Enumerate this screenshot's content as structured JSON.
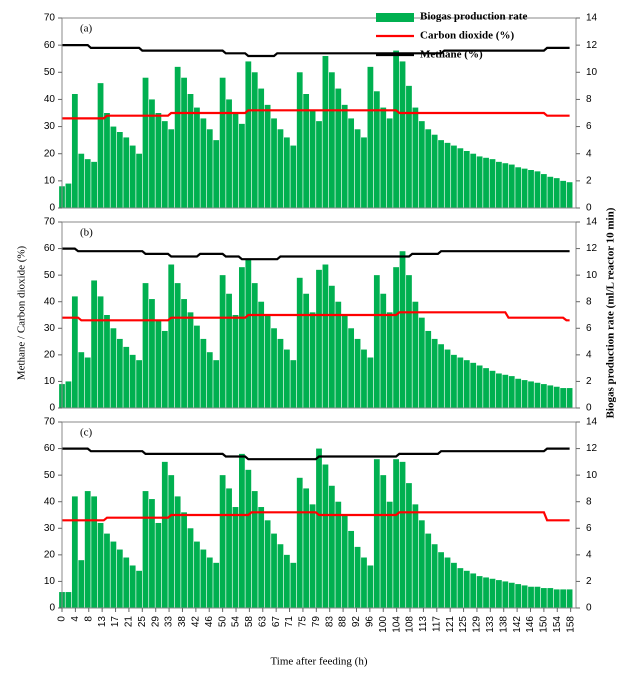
{
  "chart_data": [
    {
      "type": "bar_line",
      "panel_label": "(a)",
      "legend": "upper right",
      "xlim": [
        0,
        160
      ],
      "ylim": [
        0,
        70
      ],
      "yticks": [
        0,
        10,
        20,
        30,
        40,
        50,
        60,
        70
      ],
      "y2lim": [
        0,
        14
      ],
      "y2ticks": [
        0,
        2,
        4,
        6,
        8,
        10,
        12,
        14
      ],
      "x": [
        0,
        2,
        4,
        6,
        8,
        10,
        12,
        14,
        16,
        18,
        20,
        22,
        24,
        26,
        28,
        30,
        32,
        34,
        36,
        38,
        40,
        42,
        44,
        46,
        48,
        50,
        52,
        54,
        56,
        58,
        60,
        62,
        64,
        66,
        68,
        70,
        72,
        74,
        76,
        78,
        80,
        82,
        84,
        86,
        88,
        90,
        92,
        94,
        96,
        98,
        100,
        102,
        104,
        106,
        108,
        110,
        112,
        114,
        116,
        118,
        120,
        122,
        124,
        126,
        128,
        130,
        132,
        134,
        136,
        138,
        140,
        142,
        144,
        146,
        148,
        150,
        152,
        154,
        156,
        158
      ],
      "series": [
        {
          "name": "Biogas production rate",
          "color": "#00b050",
          "axis": "y2",
          "values": [
            1.6,
            1.8,
            8.4,
            4.0,
            3.6,
            3.4,
            9.2,
            7.0,
            6.0,
            5.6,
            5.2,
            4.6,
            4.0,
            9.6,
            8.0,
            7.0,
            6.4,
            5.8,
            10.4,
            9.6,
            8.4,
            7.4,
            6.6,
            5.8,
            5.0,
            9.6,
            8.0,
            7.0,
            6.2,
            10.8,
            10.0,
            8.8,
            7.6,
            6.6,
            5.8,
            5.2,
            4.6,
            10.0,
            8.4,
            7.2,
            6.4,
            11.2,
            10.0,
            8.8,
            7.6,
            6.6,
            5.8,
            5.2,
            10.4,
            8.6,
            7.4,
            6.6,
            11.6,
            10.8,
            9.0,
            7.4,
            6.4,
            5.8,
            5.4,
            5.0,
            4.8,
            4.6,
            4.4,
            4.2,
            4.0,
            3.8,
            3.7,
            3.6,
            3.4,
            3.3,
            3.2,
            3.0,
            2.9,
            2.8,
            2.7,
            2.5,
            2.3,
            2.2,
            2.0,
            1.9
          ]
        },
        {
          "name": "Carbon dioxide (%)",
          "color": "#ff0000",
          "x": [
            0,
            13,
            14,
            33,
            34,
            57,
            58,
            104,
            105,
            150,
            151,
            158
          ],
          "values": [
            33,
            33,
            34,
            34,
            35,
            35,
            36,
            36,
            35,
            35,
            34,
            34
          ]
        },
        {
          "name": "Methane (%)",
          "color": "#000000",
          "x": [
            0,
            8,
            9,
            24,
            25,
            50,
            51,
            57,
            58,
            66,
            67,
            118,
            119,
            150,
            151,
            158
          ],
          "values": [
            60,
            60,
            59,
            59,
            58,
            58,
            57,
            57,
            56,
            56,
            57,
            57,
            58,
            58,
            59,
            59
          ]
        }
      ]
    },
    {
      "type": "bar_line",
      "panel_label": "(b)",
      "y_label": "Methane / Carbon dioxide (%)",
      "y2_label": "Biogas production rate (ml/L reactor 10 min)",
      "xlim": [
        0,
        160
      ],
      "ylim": [
        0,
        70
      ],
      "yticks": [
        0,
        10,
        20,
        30,
        40,
        50,
        60,
        70
      ],
      "y2lim": [
        0,
        14
      ],
      "y2ticks": [
        0,
        2,
        4,
        6,
        8,
        10,
        12,
        14
      ],
      "x": [
        0,
        2,
        4,
        6,
        8,
        10,
        12,
        14,
        16,
        18,
        20,
        22,
        24,
        26,
        28,
        30,
        32,
        34,
        36,
        38,
        40,
        42,
        44,
        46,
        48,
        50,
        52,
        54,
        56,
        58,
        60,
        62,
        64,
        66,
        68,
        70,
        72,
        74,
        76,
        78,
        80,
        82,
        84,
        86,
        88,
        90,
        92,
        94,
        96,
        98,
        100,
        102,
        104,
        106,
        108,
        110,
        112,
        114,
        116,
        118,
        120,
        122,
        124,
        126,
        128,
        130,
        132,
        134,
        136,
        138,
        140,
        142,
        144,
        146,
        148,
        150,
        152,
        154,
        156,
        158
      ],
      "series": [
        {
          "color": "#00b050",
          "axis": "y2",
          "values": [
            1.8,
            2.0,
            8.4,
            4.2,
            3.8,
            9.6,
            8.4,
            7.0,
            6.0,
            5.2,
            4.6,
            4.0,
            3.6,
            9.4,
            8.2,
            6.6,
            5.8,
            10.8,
            9.4,
            8.2,
            7.2,
            6.2,
            5.2,
            4.2,
            3.6,
            10.0,
            8.6,
            7.0,
            10.6,
            11.2,
            9.4,
            8.0,
            7.0,
            6.0,
            5.2,
            4.4,
            3.6,
            9.8,
            8.6,
            7.2,
            10.4,
            10.8,
            9.2,
            8.0,
            7.0,
            6.0,
            5.2,
            4.4,
            3.8,
            10.0,
            8.6,
            7.2,
            10.6,
            11.8,
            10.0,
            8.0,
            6.8,
            5.8,
            5.2,
            4.8,
            4.4,
            4.0,
            3.8,
            3.6,
            3.4,
            3.2,
            3.0,
            2.8,
            2.6,
            2.5,
            2.4,
            2.2,
            2.1,
            2.0,
            1.9,
            1.8,
            1.7,
            1.6,
            1.5,
            1.5
          ]
        },
        {
          "color": "#ff0000",
          "x": [
            0,
            5,
            6,
            33,
            34,
            57,
            58,
            104,
            105,
            138,
            139,
            156,
            157,
            158
          ],
          "values": [
            34,
            34,
            33,
            33,
            34,
            34,
            35,
            35,
            36,
            36,
            34,
            34,
            33,
            33
          ]
        },
        {
          "color": "#000000",
          "x": [
            0,
            4,
            5,
            25,
            26,
            33,
            34,
            42,
            43,
            50,
            51,
            55,
            56,
            67,
            68,
            108,
            109,
            117,
            118,
            129,
            130,
            158
          ],
          "values": [
            60,
            60,
            59,
            59,
            58,
            58,
            57,
            57,
            58,
            58,
            57,
            57,
            56,
            56,
            57,
            57,
            58,
            58,
            59,
            59,
            59,
            59
          ]
        }
      ]
    },
    {
      "type": "bar_line",
      "panel_label": "(c)",
      "x_label": "Time after feeding (h)",
      "xlim": [
        0,
        160
      ],
      "ylim": [
        0,
        70
      ],
      "yticks": [
        0,
        10,
        20,
        30,
        40,
        50,
        60,
        70
      ],
      "y2lim": [
        0,
        14
      ],
      "y2ticks": [
        0,
        2,
        4,
        6,
        8,
        10,
        12,
        14
      ],
      "xticks": [
        0,
        {
          "value": 4.17,
          "label": "4"
        },
        {
          "value": 8.33,
          "label": "8"
        },
        {
          "value": 12.5,
          "label": "13"
        },
        {
          "value": 16.67,
          "label": "17"
        },
        {
          "value": 20.83,
          "label": "21"
        },
        25,
        {
          "value": 29.17,
          "label": "29"
        },
        {
          "value": 33.33,
          "label": "33"
        },
        {
          "value": 37.5,
          "label": "38"
        },
        {
          "value": 41.67,
          "label": "42"
        },
        {
          "value": 45.83,
          "label": "46"
        },
        50,
        {
          "value": 54.17,
          "label": "54"
        },
        {
          "value": 58.33,
          "label": "58"
        },
        {
          "value": 62.5,
          "label": "63"
        },
        {
          "value": 66.67,
          "label": "67"
        },
        {
          "value": 70.83,
          "label": "71"
        },
        75,
        {
          "value": 79.17,
          "label": "79"
        },
        {
          "value": 83.33,
          "label": "83"
        },
        {
          "value": 87.5,
          "label": "88"
        },
        {
          "value": 91.67,
          "label": "92"
        },
        {
          "value": 95.83,
          "label": "96"
        },
        100,
        {
          "value": 104.17,
          "label": "104"
        },
        {
          "value": 108.33,
          "label": "108"
        },
        {
          "value": 112.5,
          "label": "113"
        },
        {
          "value": 116.67,
          "label": "117"
        },
        {
          "value": 120.83,
          "label": "121"
        },
        125,
        {
          "value": 129.17,
          "label": "129"
        },
        {
          "value": 133.33,
          "label": "133"
        },
        {
          "value": 137.5,
          "label": "138"
        },
        {
          "value": 141.67,
          "label": "142"
        },
        {
          "value": 145.83,
          "label": "146"
        },
        150,
        {
          "value": 154.17,
          "label": "154"
        },
        {
          "value": 158.33,
          "label": "158"
        }
      ],
      "x": [
        0,
        2,
        4,
        6,
        8,
        10,
        12,
        14,
        16,
        18,
        20,
        22,
        24,
        26,
        28,
        30,
        32,
        34,
        36,
        38,
        40,
        42,
        44,
        46,
        48,
        50,
        52,
        54,
        56,
        58,
        60,
        62,
        64,
        66,
        68,
        70,
        72,
        74,
        76,
        78,
        80,
        82,
        84,
        86,
        88,
        90,
        92,
        94,
        96,
        98,
        100,
        102,
        104,
        106,
        108,
        110,
        112,
        114,
        116,
        118,
        120,
        122,
        124,
        126,
        128,
        130,
        132,
        134,
        136,
        138,
        140,
        142,
        144,
        146,
        148,
        150,
        152,
        154,
        156,
        158
      ],
      "series": [
        {
          "color": "#00b050",
          "axis": "y2",
          "values": [
            1.2,
            1.2,
            8.4,
            3.6,
            8.8,
            8.4,
            6.4,
            5.6,
            5.0,
            4.4,
            3.8,
            3.2,
            2.8,
            8.8,
            8.2,
            6.4,
            11.0,
            10.0,
            8.4,
            7.2,
            6.0,
            5.0,
            4.4,
            3.8,
            3.4,
            10.0,
            9.0,
            7.6,
            11.6,
            10.4,
            8.8,
            7.6,
            6.6,
            5.6,
            4.8,
            4.0,
            3.4,
            9.8,
            9.0,
            7.8,
            12.0,
            10.8,
            9.2,
            8.0,
            7.0,
            5.8,
            4.6,
            3.8,
            3.2,
            11.2,
            10.0,
            8.0,
            11.2,
            11.0,
            9.4,
            7.8,
            6.6,
            5.6,
            4.8,
            4.2,
            3.8,
            3.4,
            3.0,
            2.8,
            2.6,
            2.4,
            2.3,
            2.2,
            2.1,
            2.0,
            1.9,
            1.8,
            1.7,
            1.6,
            1.6,
            1.5,
            1.5,
            1.4,
            1.4,
            1.4
          ]
        },
        {
          "color": "#ff0000",
          "x": [
            0,
            13,
            14,
            33,
            34,
            58,
            59,
            79,
            80,
            104,
            105,
            150,
            151,
            158
          ],
          "values": [
            33,
            33,
            34,
            34,
            35,
            35,
            36,
            36,
            35,
            35,
            36,
            36,
            33,
            33
          ]
        },
        {
          "color": "#000000",
          "x": [
            0,
            8,
            9,
            25,
            26,
            50,
            51,
            57,
            58,
            79,
            80,
            104,
            105,
            117,
            118,
            150,
            151,
            158
          ],
          "values": [
            60,
            60,
            59,
            59,
            58,
            58,
            57,
            57,
            56,
            56,
            57,
            57,
            58,
            58,
            59,
            59,
            60,
            60
          ]
        }
      ]
    }
  ]
}
